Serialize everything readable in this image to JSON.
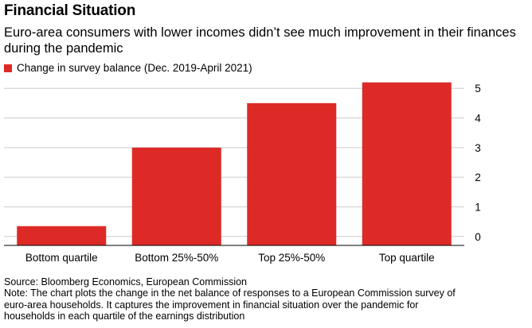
{
  "title": "Financial Situation",
  "subtitle": "Euro-area consumers with lower incomes didn’t see much improvement in their finances during the pandemic",
  "source": "Source: Bloomberg Economics, European Commission",
  "note_lines": [
    "Note: The chart plots the change in the net balance of responses to a European Commission survey of",
    "euro-area households. It captures the improvement in financial situation over the pandemic for",
    "households in each quartile of the earnings distribution"
  ],
  "colors": {
    "bar": "#dd2a27",
    "grid": "#cccccc",
    "axis": "#000000"
  },
  "chart_data": {
    "type": "bar",
    "categories": [
      "Bottom quartile",
      "Bottom 25%-50%",
      "Top 25%-50%",
      "Top quartile"
    ],
    "series": [
      {
        "name": "Change in survey balance (Dec. 2019-April 2021)",
        "values": [
          0.35,
          3.0,
          4.5,
          5.2
        ]
      }
    ],
    "yticks": [
      0,
      1,
      2,
      3,
      4,
      5
    ],
    "ylim": [
      -0.3,
      5.3
    ],
    "grid": true,
    "y_axis_position": "right",
    "legend_position": "top-left"
  }
}
